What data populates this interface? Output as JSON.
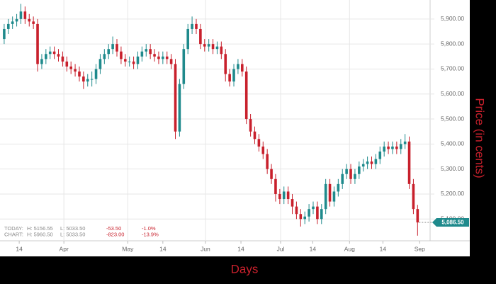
{
  "chart_data": {
    "type": "candlestick",
    "x_title": "Days",
    "y_title": "Price (in cents)",
    "up_color": "#1f8a8c",
    "down_color": "#c8202c",
    "grid": "major",
    "xlim": [
      -1,
      102
    ],
    "ylim": [
      5013,
      5976
    ],
    "yticks": [
      {
        "value": 5100,
        "label": "5,100.00"
      },
      {
        "value": 5200,
        "label": "5,200.00"
      },
      {
        "value": 5300,
        "label": "5,300.00"
      },
      {
        "value": 5400,
        "label": "5,400.00"
      },
      {
        "value": 5500,
        "label": "5,500.00"
      },
      {
        "value": 5600,
        "label": "5,600.00"
      },
      {
        "value": 5700,
        "label": "5,700.00"
      },
      {
        "value": 5800,
        "label": "5,800.00"
      },
      {
        "value": 5900,
        "label": "5,900.00"
      }
    ],
    "xticks_major": [
      {
        "value": 14.3,
        "label": "Apr"
      },
      {
        "value": 29.6,
        "label": "May"
      },
      {
        "value": 48.2,
        "label": "Jun"
      },
      {
        "value": 66.2,
        "label": "Jul"
      },
      {
        "value": 82.7,
        "label": "Aug"
      }
    ],
    "xticks_minor": [
      {
        "value": 3.6,
        "label": "14"
      },
      {
        "value": 38,
        "label": "14"
      },
      {
        "value": 56.7,
        "label": "14"
      },
      {
        "value": 73.9,
        "label": "14"
      },
      {
        "value": 90.7,
        "label": "14"
      },
      {
        "value": 99.5,
        "label": "Sep"
      }
    ],
    "last_price_label": "5,086.50",
    "open": [
      5820,
      5860,
      5880,
      5890,
      5900,
      5930,
      5900,
      5890,
      5880,
      5720,
      5740,
      5760,
      5770,
      5760,
      5750,
      5730,
      5710,
      5700,
      5690,
      5670,
      5650,
      5660,
      5660,
      5700,
      5740,
      5760,
      5780,
      5800,
      5770,
      5740,
      5730,
      5730,
      5720,
      5750,
      5770,
      5780,
      5760,
      5750,
      5740,
      5750,
      5740,
      5720,
      5450,
      5640,
      5780,
      5860,
      5880,
      5860,
      5800,
      5790,
      5800,
      5780,
      5790,
      5760,
      5680,
      5650,
      5700,
      5720,
      5690,
      5500,
      5450,
      5420,
      5390,
      5360,
      5300,
      5260,
      5200,
      5180,
      5210,
      5180,
      5150,
      5120,
      5100,
      5110,
      5140,
      5150,
      5100,
      5140,
      5240,
      5170,
      5210,
      5240,
      5280,
      5300,
      5260,
      5280,
      5310,
      5320,
      5330,
      5320,
      5340,
      5370,
      5390,
      5380,
      5390,
      5380,
      5400,
      5410,
      5240,
      5140
    ],
    "high": [
      5880,
      5900,
      5910,
      5920,
      5960.5,
      5950,
      5920,
      5910,
      5900,
      5760,
      5780,
      5790,
      5790,
      5780,
      5770,
      5750,
      5730,
      5720,
      5710,
      5690,
      5680,
      5690,
      5720,
      5760,
      5780,
      5800,
      5830,
      5820,
      5790,
      5760,
      5750,
      5750,
      5770,
      5790,
      5800,
      5800,
      5780,
      5770,
      5770,
      5770,
      5760,
      5740,
      5660,
      5800,
      5880,
      5910,
      5900,
      5880,
      5820,
      5820,
      5820,
      5810,
      5810,
      5780,
      5700,
      5720,
      5740,
      5740,
      5710,
      5520,
      5470,
      5440,
      5410,
      5380,
      5320,
      5280,
      5220,
      5230,
      5230,
      5200,
      5170,
      5140,
      5130,
      5160,
      5170,
      5170,
      5160,
      5260,
      5260,
      5230,
      5260,
      5300,
      5320,
      5320,
      5300,
      5330,
      5340,
      5350,
      5350,
      5360,
      5390,
      5410,
      5410,
      5410,
      5410,
      5420,
      5440,
      5430,
      5260,
      5156.55
    ],
    "low": [
      5800,
      5840,
      5860,
      5870,
      5880,
      5880,
      5870,
      5860,
      5690,
      5700,
      5720,
      5740,
      5740,
      5730,
      5710,
      5690,
      5680,
      5670,
      5650,
      5620,
      5630,
      5630,
      5640,
      5680,
      5720,
      5740,
      5760,
      5750,
      5720,
      5710,
      5710,
      5700,
      5700,
      5730,
      5750,
      5740,
      5730,
      5720,
      5720,
      5720,
      5700,
      5420,
      5430,
      5620,
      5760,
      5840,
      5840,
      5780,
      5770,
      5770,
      5760,
      5760,
      5740,
      5650,
      5630,
      5630,
      5680,
      5670,
      5480,
      5430,
      5400,
      5370,
      5340,
      5280,
      5240,
      5170,
      5160,
      5160,
      5160,
      5120,
      5100,
      5070,
      5080,
      5090,
      5120,
      5080,
      5080,
      5120,
      5150,
      5150,
      5190,
      5220,
      5260,
      5240,
      5240,
      5260,
      5290,
      5300,
      5300,
      5300,
      5320,
      5350,
      5360,
      5360,
      5360,
      5360,
      5380,
      5220,
      5120,
      5033.5
    ],
    "close": [
      5860,
      5880,
      5890,
      5900,
      5930,
      5900,
      5890,
      5880,
      5720,
      5740,
      5760,
      5770,
      5760,
      5750,
      5730,
      5710,
      5700,
      5690,
      5670,
      5650,
      5660,
      5660,
      5700,
      5740,
      5760,
      5780,
      5800,
      5770,
      5740,
      5730,
      5730,
      5720,
      5750,
      5770,
      5780,
      5760,
      5750,
      5740,
      5750,
      5740,
      5720,
      5450,
      5640,
      5780,
      5860,
      5880,
      5860,
      5800,
      5790,
      5800,
      5780,
      5790,
      5760,
      5680,
      5650,
      5700,
      5720,
      5690,
      5500,
      5450,
      5420,
      5390,
      5360,
      5300,
      5260,
      5200,
      5180,
      5210,
      5180,
      5150,
      5120,
      5100,
      5110,
      5140,
      5150,
      5100,
      5140,
      5240,
      5170,
      5210,
      5240,
      5280,
      5300,
      5260,
      5280,
      5310,
      5320,
      5330,
      5320,
      5340,
      5370,
      5390,
      5380,
      5390,
      5380,
      5400,
      5410,
      5240,
      5140,
      5086.5
    ],
    "info": [
      [
        "TODAY:",
        "H: 5156.55",
        "L: 5033.50",
        "-53.50",
        "-1.0%"
      ],
      [
        "CHART:",
        "H: 5960.50",
        "L: 5033.50",
        "-823.00",
        "-13.9%"
      ]
    ]
  }
}
